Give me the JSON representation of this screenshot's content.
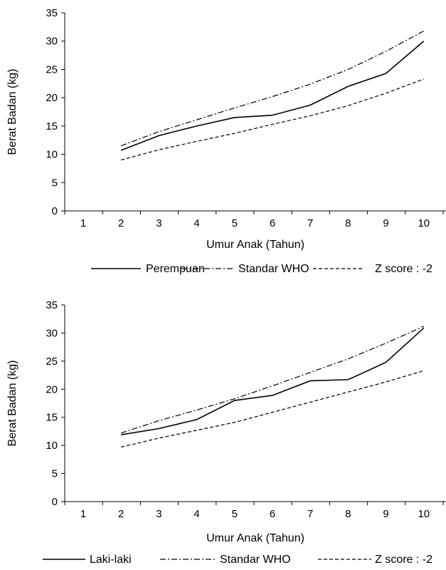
{
  "chart_data": [
    {
      "type": "line",
      "xlabel": "Umur Anak (Tahun)",
      "ylabel": "Berat Badan (kg)",
      "categories": [
        "1",
        "2",
        "3",
        "4",
        "5",
        "6",
        "7",
        "8",
        "9",
        "10"
      ],
      "yticks": [
        "0",
        "5",
        "10",
        "15",
        "20",
        "25",
        "30",
        "35"
      ],
      "ylim": [
        0,
        35
      ],
      "grid": false,
      "legend_position": "bottom",
      "series": [
        {
          "name": "Perempuan",
          "style": "solid",
          "values": [
            null,
            10.7,
            13.3,
            15.0,
            16.5,
            16.9,
            18.7,
            22.0,
            24.3,
            30.0
          ]
        },
        {
          "name": "Standar WHO",
          "style": "dash-dot",
          "values": [
            null,
            11.5,
            14.0,
            16.1,
            18.2,
            20.2,
            22.4,
            25.0,
            28.2,
            31.8
          ]
        },
        {
          "name": "Z score : -2",
          "style": "dashed",
          "values": [
            null,
            9.0,
            10.8,
            12.3,
            13.7,
            15.3,
            16.8,
            18.6,
            20.8,
            23.3
          ]
        }
      ]
    },
    {
      "type": "line",
      "xlabel": "Umur Anak (Tahun)",
      "ylabel": "Berat Badan (kg)",
      "categories": [
        "1",
        "2",
        "3",
        "4",
        "5",
        "6",
        "7",
        "8",
        "9",
        "10"
      ],
      "yticks": [
        "0",
        "5",
        "10",
        "15",
        "20",
        "25",
        "30",
        "35"
      ],
      "ylim": [
        0,
        35
      ],
      "grid": false,
      "legend_position": "bottom",
      "series": [
        {
          "name": "Laki-laki",
          "style": "solid",
          "values": [
            null,
            11.9,
            13.0,
            14.6,
            18.0,
            18.9,
            21.5,
            21.7,
            24.8,
            30.9
          ]
        },
        {
          "name": "Standar WHO",
          "style": "dash-dot",
          "values": [
            null,
            12.2,
            14.4,
            16.3,
            18.3,
            20.6,
            23.0,
            25.4,
            28.2,
            31.2
          ]
        },
        {
          "name": "Z score : -2",
          "style": "dashed",
          "values": [
            null,
            9.7,
            11.3,
            12.7,
            14.1,
            15.9,
            17.7,
            19.5,
            21.3,
            23.3
          ]
        }
      ]
    }
  ]
}
